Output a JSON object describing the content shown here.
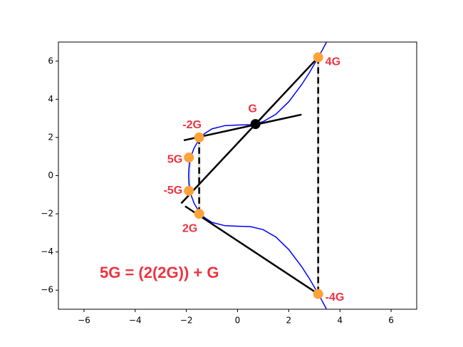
{
  "chart_data": {
    "type": "scatter",
    "xlim": [
      -7,
      7
    ],
    "ylim": [
      -7,
      7
    ],
    "xticks": [
      {
        "value": -6,
        "label": "−6"
      },
      {
        "value": -4,
        "label": "−4"
      },
      {
        "value": -2,
        "label": "−2"
      },
      0,
      2,
      4,
      6
    ],
    "yticks": [
      {
        "value": -6,
        "label": "−6"
      },
      {
        "value": -4,
        "label": "−4"
      },
      {
        "value": -2,
        "label": "−2"
      },
      0,
      2,
      4,
      6
    ],
    "curve": {
      "color": "#0000ff",
      "x": [
        3.47,
        3.3,
        3.1,
        2.8,
        2.5,
        2.0,
        1.5,
        1.0,
        0.5,
        0,
        -0.5,
        -1.0,
        -1.3,
        -1.5,
        -1.7,
        -1.8,
        -1.87,
        -1.9,
        -1.913,
        -1.9,
        -1.87,
        -1.8,
        -1.7,
        -1.5,
        -1.3,
        -1.0,
        -0.5,
        0,
        0.5,
        1.0,
        1.5,
        2.0,
        2.5,
        2.8,
        3.1,
        3.3,
        3.47
      ],
      "y": [
        6.98,
        6.55,
        6.07,
        5.38,
        4.76,
        3.87,
        3.22,
        2.83,
        2.67,
        2.65,
        2.62,
        2.45,
        2.19,
        1.9,
        1.44,
        1.08,
        0.68,
        0.38,
        0,
        -0.38,
        -0.68,
        -1.08,
        -1.44,
        -1.9,
        -2.19,
        -2.45,
        -2.62,
        -2.65,
        -2.67,
        -2.83,
        -3.22,
        -3.87,
        -4.76,
        -5.38,
        -6.07,
        -6.55,
        -6.98
      ]
    },
    "guides": [
      {
        "color": "#dddddd",
        "x": [
          -1.5,
          -1.5
        ],
        "y": [
          2.0,
          -2.0
        ]
      },
      {
        "color": "#dddddd",
        "x": [
          3.15,
          3.15
        ],
        "y": [
          6.2,
          -6.2
        ]
      },
      {
        "color": "#dddddd",
        "x": [
          -1.88,
          -1.88
        ],
        "y": [
          0.95,
          -0.8
        ]
      }
    ],
    "lines": [
      {
        "color": "#000000",
        "dashed": false,
        "x": [
          -2.1,
          2.5
        ],
        "y": [
          1.85,
          3.2
        ]
      },
      {
        "color": "#000000",
        "dashed": false,
        "x": [
          -2.2,
          3.15
        ],
        "y": [
          -1.45,
          6.2
        ]
      },
      {
        "color": "#000000",
        "dashed": false,
        "x": [
          -2.05,
          3.15
        ],
        "y": [
          -1.6,
          -6.2
        ]
      },
      {
        "color": "#000000",
        "dashed": true,
        "x": [
          -1.5,
          -1.5
        ],
        "y": [
          2.0,
          -2.0
        ]
      },
      {
        "color": "#000000",
        "dashed": true,
        "x": [
          3.15,
          3.15
        ],
        "y": [
          6.2,
          -6.2
        ]
      }
    ],
    "points": [
      {
        "name": "G",
        "x": 0.7,
        "y": 2.7,
        "color": "#000000"
      },
      {
        "name": "-2G",
        "x": -1.5,
        "y": 2.0,
        "color": "#ffa238"
      },
      {
        "name": "5G",
        "x": -1.9,
        "y": 0.95,
        "color": "#ffa238"
      },
      {
        "name": "-5G",
        "x": -1.9,
        "y": -0.8,
        "color": "#ffa238"
      },
      {
        "name": "2G",
        "x": -1.5,
        "y": -2.0,
        "color": "#ffa238"
      },
      {
        "name": "4G",
        "x": 3.15,
        "y": 6.2,
        "color": "#ffa238"
      },
      {
        "name": "-4G",
        "x": 3.15,
        "y": -6.2,
        "color": "#ffa238"
      }
    ],
    "label_color": "#ee3340",
    "annotation": "5G = (2(2G)) + G"
  }
}
